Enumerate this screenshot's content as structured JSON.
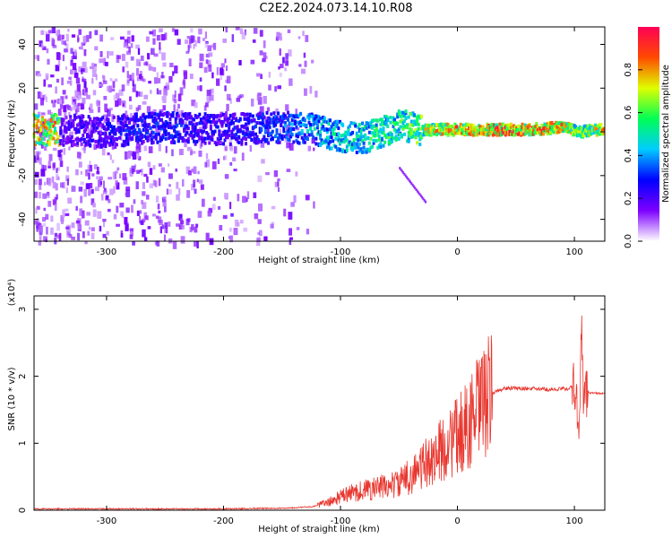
{
  "title": "C2E2.2024.073.14.10.R08",
  "chart_data": [
    {
      "type": "heatmap",
      "xlabel": "Height of straight line (km)",
      "ylabel": "Frequency (Hz)",
      "xlim": [
        -362,
        126
      ],
      "ylim": [
        -50,
        48
      ],
      "x_ticks": [
        -300,
        -200,
        -100,
        0,
        100
      ],
      "y_ticks": [
        -40,
        -20,
        0,
        20,
        40
      ],
      "colorbar": {
        "label": "Normalized spectral amplitude",
        "ticks": [
          0.0,
          0.2,
          0.4,
          0.6,
          0.8
        ],
        "range": [
          0,
          1
        ],
        "colors": [
          "#ffffff",
          "#7d00ff",
          "#0000ff",
          "#00ccff",
          "#00ff55",
          "#dfff00",
          "#ff4a00",
          "#ff0055"
        ]
      },
      "ridge": [
        {
          "x": -340,
          "f": 1,
          "a": 0.25
        },
        {
          "x": -300,
          "f": 0,
          "a": 0.3
        },
        {
          "x": -260,
          "f": 2,
          "a": 0.35
        },
        {
          "x": -200,
          "f": 1,
          "a": 0.3
        },
        {
          "x": -150,
          "f": 2,
          "a": 0.4
        },
        {
          "x": -120,
          "f": 1,
          "a": 0.5
        },
        {
          "x": -100,
          "f": -2,
          "a": 0.55
        },
        {
          "x": -80,
          "f": -3,
          "a": 0.6
        },
        {
          "x": -50,
          "f": 3,
          "a": 0.65
        },
        {
          "x": -30,
          "f": 1,
          "a": 0.75
        },
        {
          "x": -10,
          "f": 1,
          "a": 0.9
        },
        {
          "x": 20,
          "f": 1,
          "a": 0.95
        },
        {
          "x": 60,
          "f": 1,
          "a": 0.95
        },
        {
          "x": 90,
          "f": 2,
          "a": 0.9
        },
        {
          "x": 105,
          "f": 0,
          "a": 0.7
        },
        {
          "x": 126,
          "f": 1,
          "a": 0.85
        }
      ]
    },
    {
      "type": "line",
      "xlabel": "Height of straight line (km)",
      "ylabel": "SNR (10 * v/v)",
      "y_multiplier": "(x10⁴)",
      "xlim": [
        -362,
        126
      ],
      "ylim": [
        0,
        3.2
      ],
      "x_ticks": [
        -300,
        -200,
        -100,
        0,
        100
      ],
      "y_ticks": [
        0,
        1,
        2,
        3
      ],
      "color": "#e8362e",
      "series": [
        {
          "x": [
            -362,
            -300,
            -200,
            -150,
            -125,
            -110,
            -100,
            -90,
            -80,
            -70,
            -60,
            -50,
            -40,
            -30,
            -20,
            -10,
            0,
            10,
            20,
            30,
            40,
            60,
            80,
            95,
            100,
            104,
            106,
            108,
            110,
            115,
            126
          ],
          "y": [
            0.02,
            0.02,
            0.02,
            0.03,
            0.05,
            0.12,
            0.2,
            0.26,
            0.3,
            0.33,
            0.36,
            0.4,
            0.52,
            0.65,
            0.8,
            0.95,
            1.1,
            1.3,
            1.55,
            1.75,
            1.82,
            1.82,
            1.8,
            1.82,
            1.85,
            1.2,
            2.8,
            1.5,
            1.77,
            1.75,
            1.74
          ]
        }
      ]
    }
  ]
}
